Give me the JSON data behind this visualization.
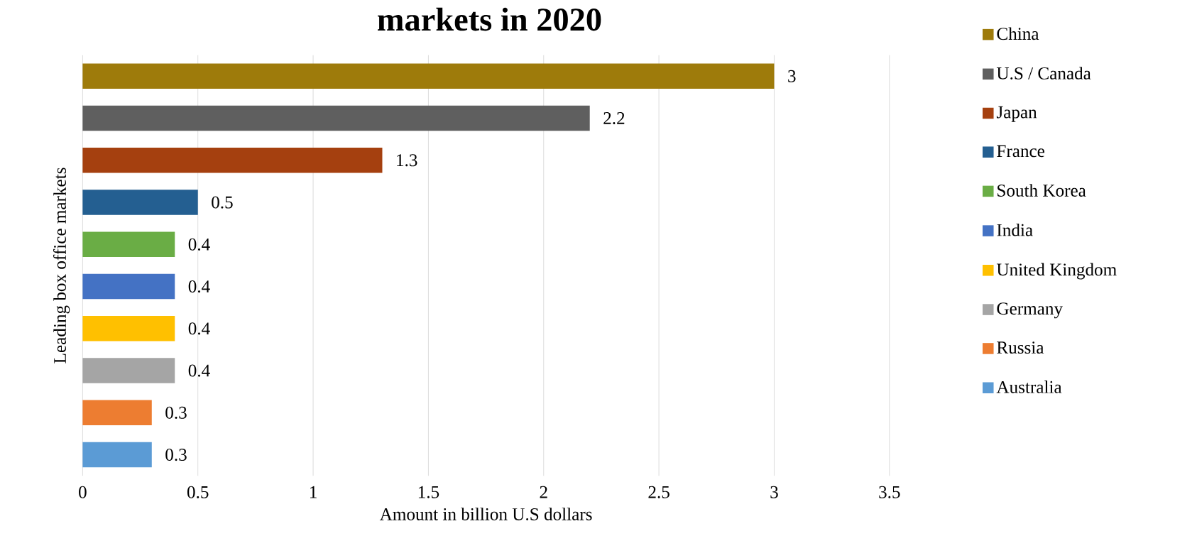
{
  "chart_data": {
    "type": "bar",
    "orientation": "horizontal",
    "title": "markets in 2020",
    "xlabel": "Amount in billion  U.S dollars",
    "ylabel": "Leading box office markets",
    "categories": [
      null
    ],
    "series": [
      {
        "name": "China",
        "color": "#9e7b0b",
        "values": [
          3
        ]
      },
      {
        "name": "U.S / Canada",
        "color": "#5f5f5f",
        "values": [
          2.2
        ]
      },
      {
        "name": "Japan",
        "color": "#a5400f",
        "values": [
          1.3
        ]
      },
      {
        "name": "France",
        "color": "#245f91",
        "values": [
          0.5
        ]
      },
      {
        "name": "South Korea",
        "color": "#6aad45",
        "values": [
          0.4
        ]
      },
      {
        "name": "India",
        "color": "#4472c4",
        "values": [
          0.4
        ]
      },
      {
        "name": "United Kingdom",
        "color": "#ffc000",
        "values": [
          0.4
        ]
      },
      {
        "name": "Germany",
        "color": "#a5a5a5",
        "values": [
          0.4
        ]
      },
      {
        "name": "Russia",
        "color": "#ed7d31",
        "values": [
          0.3
        ]
      },
      {
        "name": "Australia",
        "color": "#5b9bd5",
        "values": [
          0.3
        ]
      }
    ],
    "xlim": [
      0,
      3.5
    ],
    "xticks": [
      0,
      0.5,
      1,
      1.5,
      2,
      2.5,
      3,
      3.5
    ],
    "grid": "x",
    "legend": "right",
    "data_labels": true
  }
}
